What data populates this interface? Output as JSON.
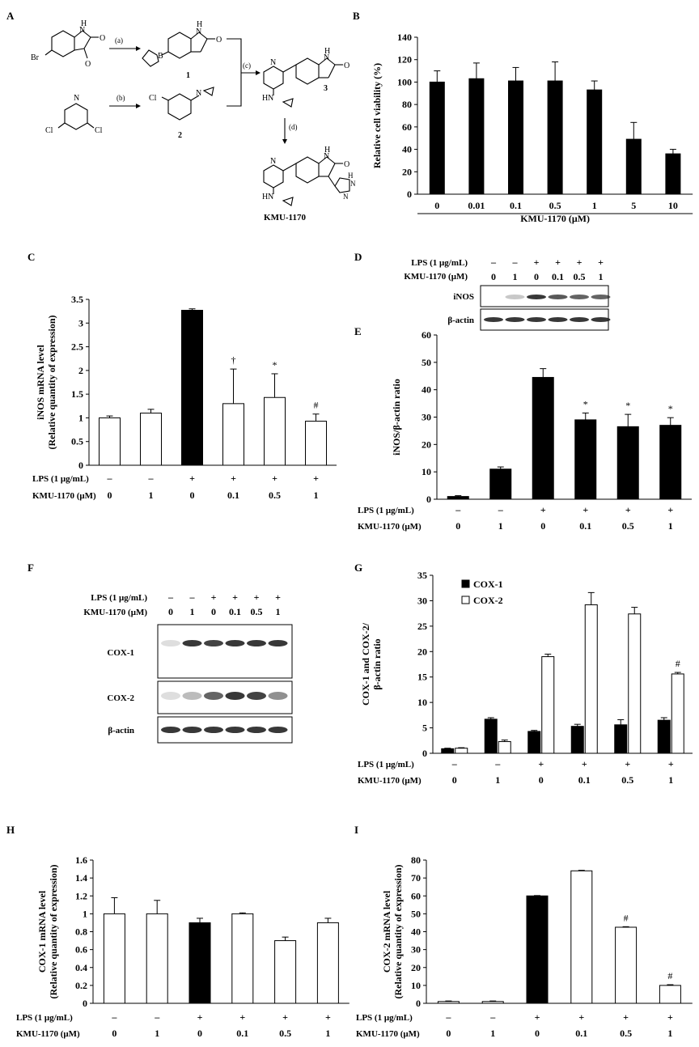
{
  "panels": {
    "A": {
      "letter": "A",
      "steps": [
        "(a)",
        "(b)",
        "(c)",
        "(d)"
      ],
      "atoms": {
        "O": "O",
        "H": "H",
        "N": "N",
        "Br": "Br",
        "Cl": "Cl",
        "B": "B"
      },
      "compounds": [
        "1",
        "2",
        "3"
      ],
      "product": "KMU-1170"
    },
    "B": {
      "letter": "B"
    },
    "C": {
      "letter": "C"
    },
    "D": {
      "letter": "D",
      "lps_label": "LPS (1 μg/mL)",
      "kmu_label": "KMU-1170 (μM)",
      "lps": [
        "–",
        "–",
        "+",
        "+",
        "+",
        "+"
      ],
      "kmu": [
        "0",
        "1",
        "0",
        "0.1",
        "0.5",
        "1"
      ],
      "bands": [
        "iNOS",
        "β-actin"
      ]
    },
    "E": {
      "letter": "E"
    },
    "F": {
      "letter": "F",
      "lps_label": "LPS (1 μg/mL)",
      "kmu_label": "KMU-1170 (μM)",
      "lps": [
        "–",
        "–",
        "+",
        "+",
        "+",
        "+"
      ],
      "kmu": [
        "0",
        "1",
        "0",
        "0.1",
        "0.5",
        "1"
      ],
      "bands": [
        "COX-1",
        "COX-2",
        "β-actin"
      ]
    },
    "G": {
      "letter": "G"
    },
    "H": {
      "letter": "H"
    },
    "I": {
      "letter": "I"
    }
  },
  "colors": {
    "filled": "#000000",
    "open": "#ffffff",
    "axis": "#000000",
    "band": "#222222"
  },
  "chart_data": [
    {
      "id": "B",
      "type": "bar",
      "categories": [
        "0",
        "0.01",
        "0.1",
        "0.5",
        "1",
        "5",
        "10"
      ],
      "values": [
        100,
        103,
        101,
        101,
        93,
        49,
        36
      ],
      "errors": [
        10,
        14,
        12,
        17,
        8,
        15,
        4
      ],
      "fills": [
        "black",
        "black",
        "black",
        "black",
        "black",
        "black",
        "black"
      ],
      "ylabel": "Relative cell viability (%)",
      "xlabel": "KMU-1170 (μM)",
      "ylim": [
        0,
        140
      ],
      "yticks": [
        0,
        20,
        40,
        60,
        80,
        100,
        120,
        140
      ]
    },
    {
      "id": "C",
      "type": "bar",
      "categories": [
        "1",
        "2",
        "3",
        "4",
        "5",
        "6"
      ],
      "values": [
        1.0,
        1.1,
        3.27,
        1.3,
        1.43,
        0.93
      ],
      "errors": [
        0.04,
        0.08,
        0.03,
        0.73,
        0.5,
        0.15
      ],
      "fills": [
        "white",
        "white",
        "black",
        "white",
        "white",
        "white"
      ],
      "marks": [
        "",
        "",
        "",
        "†",
        "*",
        "#"
      ],
      "ylabel": "iNOS mRNA level",
      "ylabel2": "(Relative quantity of expression)",
      "ylim": [
        0,
        3.5
      ],
      "yticks": [
        0,
        0.5,
        1,
        1.5,
        2,
        2.5,
        3,
        3.5
      ],
      "lps_label": "LPS (1 μg/mL)",
      "kmu_label": "KMU-1170 (μM)",
      "lps": [
        "–",
        "–",
        "+",
        "+",
        "+",
        "+"
      ],
      "kmu": [
        "0",
        "1",
        "0",
        "0.1",
        "0.5",
        "1"
      ]
    },
    {
      "id": "E",
      "type": "bar",
      "categories": [
        "1",
        "2",
        "3",
        "4",
        "5",
        "6"
      ],
      "values": [
        1,
        11,
        44.5,
        29,
        26.5,
        27
      ],
      "errors": [
        0.3,
        0.8,
        3.2,
        2.5,
        4.5,
        2.8
      ],
      "fills": [
        "black",
        "black",
        "black",
        "black",
        "black",
        "black"
      ],
      "marks": [
        "",
        "",
        "",
        "*",
        "*",
        "*"
      ],
      "ylabel": "iNOS/β-actin ratio",
      "ylim": [
        0,
        60
      ],
      "yticks": [
        0,
        10,
        20,
        30,
        40,
        50,
        60
      ],
      "lps_label": "LPS (1 μg/mL)",
      "kmu_label": "KMU-1170 (μM)",
      "lps": [
        "–",
        "–",
        "+",
        "+",
        "+",
        "+"
      ],
      "kmu": [
        "0",
        "1",
        "0",
        "0.1",
        "0.5",
        "1"
      ]
    },
    {
      "id": "G",
      "type": "bar",
      "categories": [
        "1",
        "2",
        "3",
        "4",
        "5",
        "6"
      ],
      "series": [
        {
          "name": "COX-1",
          "fill": "black",
          "values": [
            0.9,
            6.7,
            4.3,
            5.3,
            5.6,
            6.5
          ],
          "errors": [
            0.1,
            0.3,
            0.2,
            0.4,
            1.0,
            0.5
          ]
        },
        {
          "name": "COX-2",
          "fill": "white",
          "values": [
            1.0,
            2.3,
            19,
            29.2,
            27.4,
            15.6
          ],
          "errors": [
            0.1,
            0.3,
            0.5,
            2.4,
            1.3,
            0.3
          ]
        }
      ],
      "marks": [
        "",
        "",
        "",
        "",
        "",
        "#"
      ],
      "ylabel": "COX-1 and COX-2/",
      "ylabel2": "β-actin ratio",
      "ylim": [
        0,
        35
      ],
      "yticks": [
        0,
        5,
        10,
        15,
        20,
        25,
        30,
        35
      ],
      "legend": "top-left",
      "lps_label": "LPS (1 μg/mL)",
      "kmu_label": "KMU-1170 (μM)",
      "lps": [
        "–",
        "–",
        "+",
        "+",
        "+",
        "+"
      ],
      "kmu": [
        "0",
        "1",
        "0",
        "0.1",
        "0.5",
        "1"
      ]
    },
    {
      "id": "H",
      "type": "bar",
      "categories": [
        "1",
        "2",
        "3",
        "4",
        "5",
        "6"
      ],
      "values": [
        1.0,
        1.0,
        0.9,
        1.0,
        0.7,
        0.9
      ],
      "errors": [
        0.18,
        0.15,
        0.05,
        0.01,
        0.04,
        0.05
      ],
      "fills": [
        "white",
        "white",
        "black",
        "white",
        "white",
        "white"
      ],
      "marks": [
        "",
        "",
        "",
        "",
        "",
        ""
      ],
      "ylabel": "COX-1 mRNA level",
      "ylabel2": "(Relative quantity of expression)",
      "ylim": [
        0,
        1.6
      ],
      "yticks": [
        0,
        0.2,
        0.4,
        0.6,
        0.8,
        1,
        1.2,
        1.4,
        1.6
      ],
      "lps_label": "LPS (1 μg/mL)",
      "kmu_label": "KMU-1170 (μM)",
      "lps": [
        "–",
        "–",
        "+",
        "+",
        "+",
        "+"
      ],
      "kmu": [
        "0",
        "1",
        "0",
        "0.1",
        "0.5",
        "1"
      ]
    },
    {
      "id": "I",
      "type": "bar",
      "categories": [
        "1",
        "2",
        "3",
        "4",
        "5",
        "6"
      ],
      "values": [
        1.0,
        1.0,
        60,
        74,
        42.5,
        10
      ],
      "errors": [
        0.3,
        0.3,
        0.2,
        0.3,
        0.3,
        0.4
      ],
      "fills": [
        "white",
        "white",
        "black",
        "white",
        "white",
        "white"
      ],
      "marks": [
        "",
        "",
        "",
        "",
        "#",
        "#"
      ],
      "ylabel": "COX-2 mRNA level",
      "ylabel2": "(Relative quantity of expression)",
      "ylim": [
        0,
        80
      ],
      "yticks": [
        0,
        10,
        20,
        30,
        40,
        50,
        60,
        70,
        80
      ],
      "lps_label": "LPS (1 μg/mL)",
      "kmu_label": "KMU-1170 (μM)",
      "lps": [
        "–",
        "–",
        "+",
        "+",
        "+",
        "+"
      ],
      "kmu": [
        "0",
        "1",
        "0",
        "0.1",
        "0.5",
        "1"
      ]
    }
  ]
}
